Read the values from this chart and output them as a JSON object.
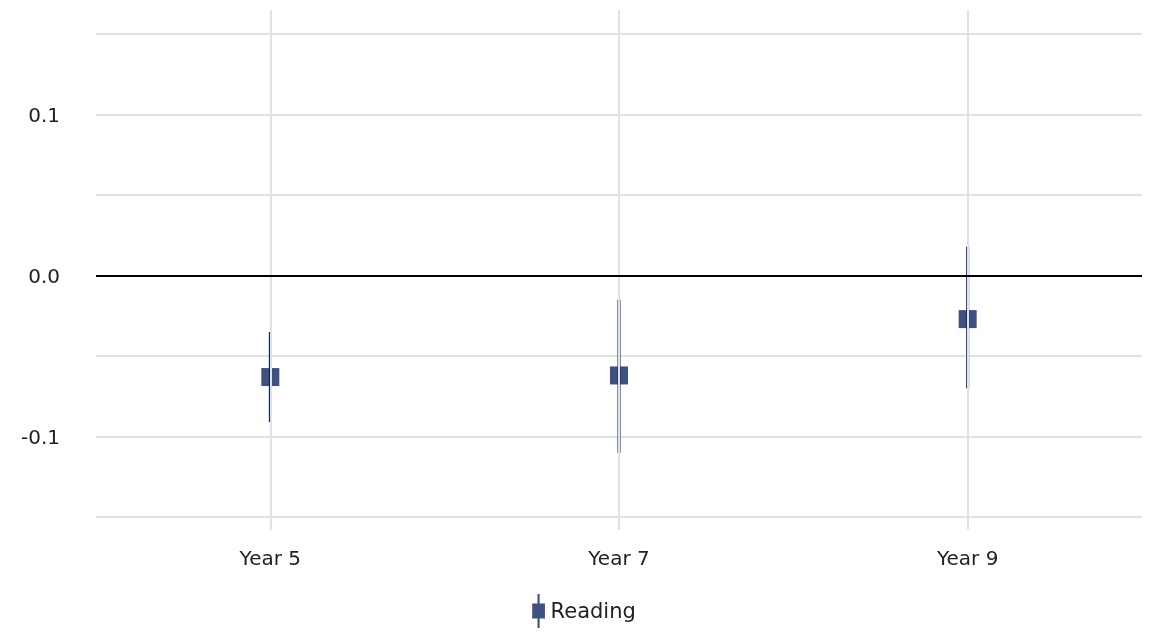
{
  "chart_data": {
    "type": "scatter",
    "categories": [
      "Year 5",
      "Year 7",
      "Year 9"
    ],
    "series": [
      {
        "name": "Reading",
        "color": "#0d2762",
        "values": [
          -0.063,
          -0.062,
          -0.027
        ],
        "errors": [
          [
            -0.091,
            -0.035
          ],
          [
            -0.11,
            -0.015
          ],
          [
            -0.07,
            0.018
          ]
        ]
      }
    ],
    "ylim": [
      -0.158,
      0.165
    ],
    "yticks": [
      {
        "value": -0.15,
        "label": null
      },
      {
        "value": -0.1,
        "label": "-0.1"
      },
      {
        "value": -0.05,
        "label": null
      },
      {
        "value": 0,
        "label": "0.0"
      },
      {
        "value": 0.05,
        "label": null
      },
      {
        "value": 0.1,
        "label": "0.1"
      },
      {
        "value": 0.15,
        "label": null
      }
    ],
    "ref_lines": [
      {
        "axis": "y",
        "value": 0,
        "color": "#000000"
      }
    ],
    "grid": true,
    "legend": "bottom",
    "marker": "square"
  }
}
